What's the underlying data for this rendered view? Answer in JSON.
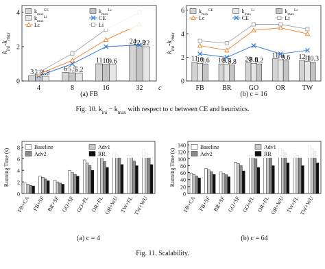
{
  "chart_data": [
    {
      "type": "combo",
      "caption": "(a) FB",
      "ylabel": "k_ini-k_max",
      "xlabel": "c",
      "categories": [
        "4",
        "8",
        "16",
        "32"
      ],
      "ylim": [
        0,
        4.4
      ],
      "yticks": [
        0,
        2,
        4
      ],
      "grid": false,
      "legend": "top",
      "series": [
        {
          "name": "k_max^CE",
          "kind": "bar",
          "color": "#d4d4d4",
          "values": [
            0.32,
            0.5,
            1.0,
            2.1
          ],
          "labels": [
            "3",
            "6",
            "11",
            "24"
          ]
        },
        {
          "name": "k_max^Lc",
          "kind": "bar",
          "color": "#c4c4c4",
          "values": [
            0.3,
            0.48,
            0.97,
            2.05
          ],
          "labels": [
            "2.9",
            "5.5",
            "10",
            "22.8"
          ]
        },
        {
          "name": "k_max^Li",
          "kind": "bar",
          "color": "#e6e6e6",
          "values": [
            0.28,
            0.46,
            0.95,
            2.0
          ],
          "labels": [
            "2.8",
            "5.2",
            "9.6",
            "22"
          ]
        },
        {
          "name": "CE",
          "kind": "line",
          "marker": "x",
          "color": "#3a7fd5",
          "values": [
            0.3,
            1.0,
            2.0,
            2.1
          ]
        },
        {
          "name": "Lc",
          "kind": "line",
          "marker": "triangle",
          "color": "#f08a3c",
          "values": [
            0.4,
            1.2,
            2.4,
            3.3
          ]
        },
        {
          "name": "Li",
          "kind": "line",
          "marker": "square",
          "color": "#a8a8a8",
          "values": [
            0.5,
            1.6,
            3.0,
            4.0
          ]
        }
      ]
    },
    {
      "type": "combo",
      "caption": "(b) c = 16",
      "ylabel": "k_ini-k_max",
      "categories": [
        "FB",
        "BR",
        "GO",
        "OR",
        "TW"
      ],
      "ylim": [
        0,
        6.4
      ],
      "yticks": [
        0,
        2,
        4,
        6
      ],
      "grid": false,
      "legend": "top",
      "series": [
        {
          "name": "k_max^CE",
          "kind": "bar",
          "color": "#d4d4d4",
          "values": [
            1.6,
            1.45,
            1.55,
            1.9,
            1.75
          ],
          "labels": [
            "11",
            "10",
            "20",
            "11",
            "12"
          ]
        },
        {
          "name": "k_max^Li",
          "kind": "bar",
          "color": "#e6e6e6",
          "values": [
            1.5,
            1.4,
            1.5,
            1.8,
            1.65
          ],
          "labels": [
            "10",
            "9.7",
            "8.6",
            "10",
            "11"
          ]
        },
        {
          "name": "k_max^Lc",
          "kind": "bar",
          "color": "#c4c4c4",
          "values": [
            1.45,
            1.35,
            1.45,
            1.7,
            1.6
          ],
          "labels": [
            "9.6",
            "9.8",
            "8.2",
            "9.6",
            "10.3"
          ]
        },
        {
          "name": "Lc",
          "kind": "line",
          "marker": "triangle",
          "color": "#f08a3c",
          "values": [
            3.0,
            2.6,
            4.3,
            4.5,
            4.0
          ]
        },
        {
          "name": "CE",
          "kind": "line",
          "marker": "x",
          "color": "#3a7fd5",
          "values": [
            2.3,
            2.0,
            3.0,
            2.3,
            2.6
          ]
        },
        {
          "name": "Li",
          "kind": "line",
          "marker": "square",
          "color": "#a8a8a8",
          "values": [
            3.4,
            3.2,
            4.8,
            4.8,
            4.4
          ]
        }
      ]
    },
    {
      "type": "bar",
      "caption": "(a) c = 4",
      "ylabel": "Running Time (s)",
      "categories": [
        "FB+CA",
        "FB+SF",
        "BR+SF",
        "GO+SF",
        "GO+FL",
        "OR+FL",
        "OR+WU",
        "TW+FL",
        "TW+WU"
      ],
      "ylim": [
        0,
        9
      ],
      "yticks": [
        0,
        2,
        4,
        6,
        8
      ],
      "grid": false,
      "legend": "top",
      "series": [
        {
          "name": "Baseline",
          "color": "#ffffff",
          "values": [
            1.8,
            3.0,
            2.3,
            4.0,
            5.8,
            6.5,
            7.0,
            6.6,
            7.6
          ]
        },
        {
          "name": "Adv1",
          "color": "#c8c8c8",
          "values": [
            1.6,
            2.8,
            2.0,
            3.6,
            5.3,
            6.0,
            6.7,
            6.2,
            7.0
          ]
        },
        {
          "name": "Adv2",
          "color": "#8a8a8a",
          "values": [
            1.4,
            2.5,
            1.8,
            3.3,
            4.8,
            5.5,
            6.2,
            5.6,
            6.2
          ]
        },
        {
          "name": "RR",
          "color": "#111111",
          "values": [
            1.3,
            2.2,
            1.6,
            3.0,
            4.0,
            4.5,
            5.0,
            4.8,
            5.0
          ]
        }
      ]
    },
    {
      "type": "bar",
      "caption": "(b) c = 64",
      "ylabel": "Running Time (s)",
      "categories": [
        "FB+CA",
        "FB+SF",
        "BR+SF",
        "GO+SF",
        "GO+FL",
        "OR+FL",
        "OR+WU",
        "TW+FL",
        "TW+WU"
      ],
      "ylim": [
        0,
        150
      ],
      "yticks": [
        0,
        20,
        40,
        60,
        80,
        100,
        120,
        140
      ],
      "grid": false,
      "legend": "top",
      "series": [
        {
          "name": "Baseline",
          "color": "#ffffff",
          "values": [
            58,
            72,
            62,
            90,
            110,
            125,
            130,
            115,
            138
          ]
        },
        {
          "name": "Adv1",
          "color": "#c8c8c8",
          "values": [
            55,
            68,
            58,
            86,
            105,
            118,
            125,
            110,
            130
          ]
        },
        {
          "name": "Adv2",
          "color": "#8a8a8a",
          "values": [
            50,
            63,
            54,
            80,
            100,
            112,
            118,
            105,
            122
          ]
        },
        {
          "name": "RR",
          "color": "#111111",
          "values": [
            45,
            55,
            48,
            65,
            75,
            80,
            88,
            80,
            88
          ]
        }
      ]
    }
  ],
  "figure_captions": [
    "Fig. 10.  k_ini − k_max with respect to c between CE and heuristics.",
    "Fig. 11.  Scalability."
  ]
}
